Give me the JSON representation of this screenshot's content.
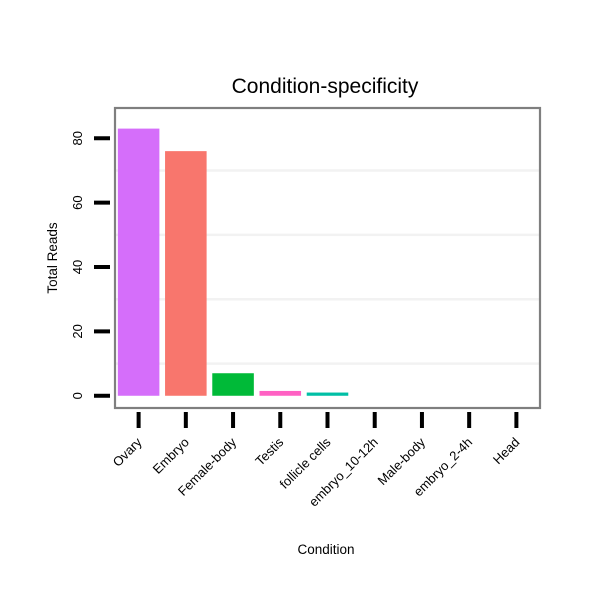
{
  "chart_data": {
    "type": "bar",
    "title": "Condition-specificity",
    "xlabel": "Condition",
    "ylabel": "Total Reads",
    "categories": [
      "Ovary",
      "Embryo",
      "Female-body",
      "Testis",
      "follicle cells",
      "embryo_10-12h",
      "Male-body",
      "embryo_2-4h",
      "Head"
    ],
    "values": [
      83,
      76,
      7,
      1.5,
      1,
      0,
      0,
      0,
      0
    ],
    "colors": [
      "#D56EFA",
      "#F8766D",
      "#00BA38",
      "#FF61C3",
      "#00BFA5",
      "#888888",
      "#888888",
      "#888888",
      "#888888"
    ],
    "ylim": [
      -3.8,
      89.4
    ],
    "yticks": [
      0,
      20,
      40,
      60,
      80
    ],
    "grid": true,
    "legend": "none"
  }
}
